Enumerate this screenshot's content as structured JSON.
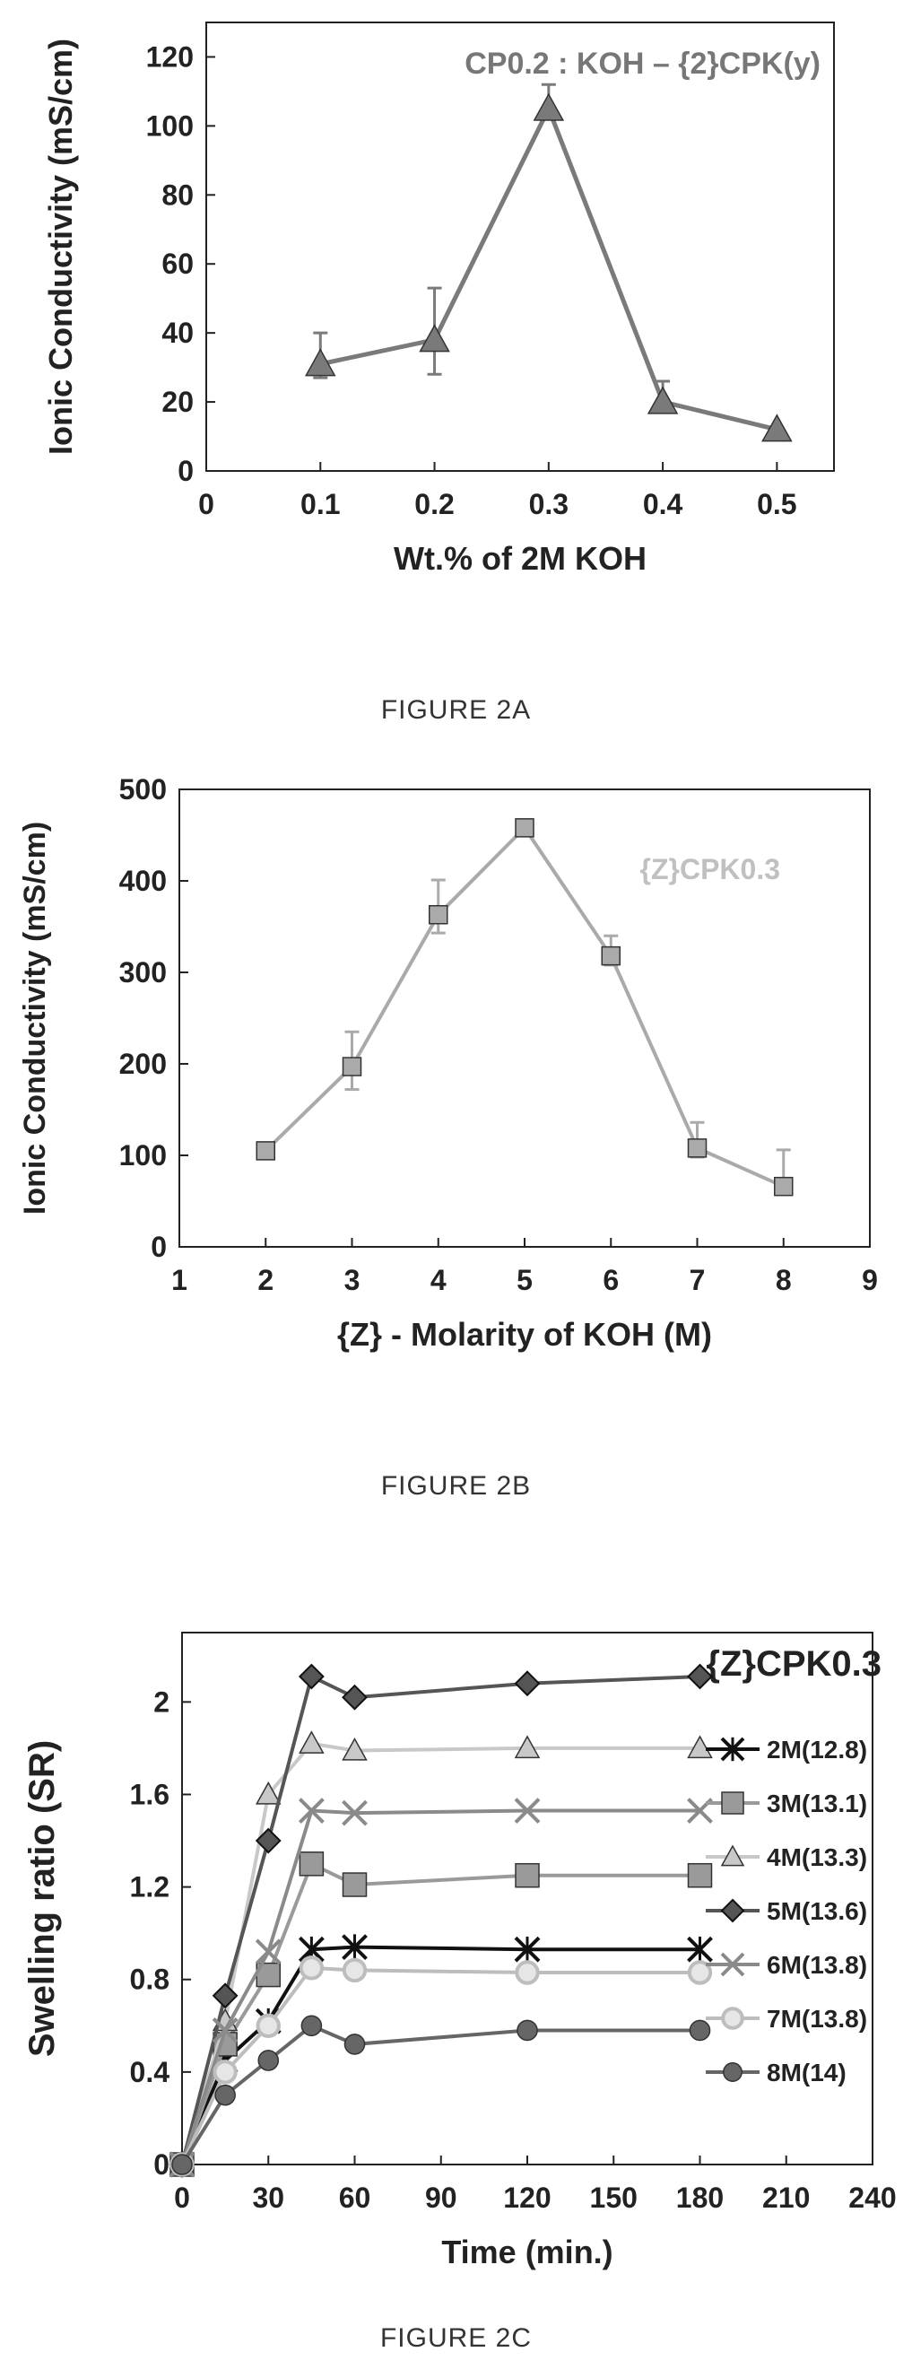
{
  "figures": [
    {
      "caption": "FIGURE 2A"
    },
    {
      "caption": "FIGURE 2B"
    },
    {
      "caption": "FIGURE 2C"
    }
  ],
  "chart_data": [
    {
      "type": "line",
      "annotation": "CP0.2 : KOH – {2}CPK(y)",
      "xlabel": "Wt.% of 2M KOH",
      "ylabel": "Ionic Conductivity (mS/cm)",
      "xlim": [
        0,
        0.55
      ],
      "ylim": [
        0,
        130
      ],
      "xticks": [
        "0",
        "0.1",
        "0.2",
        "0.3",
        "0.4",
        "0.5"
      ],
      "yticks": [
        "0",
        "20",
        "40",
        "60",
        "80",
        "100",
        "120"
      ],
      "color": "#7a7a7a",
      "marker": "triangle",
      "series": [
        {
          "x": [
            0.1,
            0.2,
            0.3,
            0.4,
            0.5
          ],
          "y": [
            31,
            38,
            105,
            20,
            12
          ],
          "err_up": [
            9,
            15,
            7,
            6,
            0
          ],
          "err_down": [
            4,
            10,
            0,
            0,
            0
          ]
        }
      ]
    },
    {
      "type": "line",
      "annotation": "{Z}CPK0.3",
      "xlabel": "{Z} - Molarity of KOH (M)",
      "ylabel": "Ionic Conductivity (mS/cm)",
      "xlim": [
        1,
        9
      ],
      "ylim": [
        0,
        500
      ],
      "xticks": [
        "1",
        "2",
        "3",
        "4",
        "5",
        "6",
        "7",
        "8",
        "9"
      ],
      "yticks": [
        "0",
        "100",
        "200",
        "300",
        "400",
        "500"
      ],
      "color": "#aaaaaa",
      "marker": "square",
      "series": [
        {
          "x": [
            2,
            3,
            4,
            5,
            6,
            7,
            8
          ],
          "y": [
            105,
            197,
            363,
            458,
            318,
            108,
            66
          ],
          "err_up": [
            8,
            38,
            38,
            5,
            22,
            28,
            40
          ],
          "err_down": [
            8,
            25,
            20,
            5,
            10,
            10,
            5
          ]
        }
      ]
    },
    {
      "type": "line",
      "annotation": "{Z}CPK0.3",
      "xlabel": "Time (min.)",
      "ylabel": "Swelling ratio (SR)",
      "xlim": [
        0,
        240
      ],
      "ylim": [
        0,
        2.3
      ],
      "xticks": [
        "0",
        "30",
        "60",
        "90",
        "120",
        "150",
        "180",
        "210",
        "240"
      ],
      "yticks": [
        "0",
        "0.4",
        "0.8",
        "1.2",
        "1.6",
        "2"
      ],
      "legend": "right",
      "series": [
        {
          "name": "2M(12.8)",
          "color": "#111111",
          "marker": "star",
          "x": [
            0,
            15,
            30,
            45,
            60,
            120,
            180
          ],
          "y": [
            0,
            0.45,
            0.62,
            0.93,
            0.94,
            0.93,
            0.93
          ]
        },
        {
          "name": "3M(13.1)",
          "color": "#9a9a9a",
          "marker": "square",
          "x": [
            0,
            15,
            30,
            45,
            60,
            120,
            180
          ],
          "y": [
            0,
            0.52,
            0.82,
            1.3,
            1.21,
            1.25,
            1.25
          ]
        },
        {
          "name": "4M(13.3)",
          "color": "#c8c8c8",
          "marker": "triangle",
          "x": [
            0,
            15,
            30,
            45,
            60,
            120,
            180
          ],
          "y": [
            0,
            0.62,
            1.6,
            1.82,
            1.79,
            1.8,
            1.8
          ]
        },
        {
          "name": "5M(13.6)",
          "color": "#555555",
          "marker": "diamond",
          "x": [
            0,
            15,
            30,
            45,
            60,
            120,
            180
          ],
          "y": [
            0,
            0.73,
            1.4,
            2.11,
            2.02,
            2.08,
            2.11
          ]
        },
        {
          "name": "6M(13.8)",
          "color": "#8a8a8a",
          "marker": "x",
          "x": [
            0,
            15,
            30,
            45,
            60,
            120,
            180
          ],
          "y": [
            0,
            0.58,
            0.92,
            1.53,
            1.52,
            1.53,
            1.53
          ]
        },
        {
          "name": "7M(13.8)",
          "color": "#bdbdbd",
          "marker": "circle-open",
          "x": [
            0,
            15,
            30,
            45,
            60,
            120,
            180
          ],
          "y": [
            0,
            0.4,
            0.6,
            0.85,
            0.84,
            0.83,
            0.83
          ]
        },
        {
          "name": "8M(14)",
          "color": "#666666",
          "marker": "circle",
          "x": [
            0,
            15,
            30,
            45,
            60,
            120,
            180
          ],
          "y": [
            0,
            0.3,
            0.45,
            0.6,
            0.52,
            0.58,
            0.58
          ]
        }
      ]
    }
  ]
}
